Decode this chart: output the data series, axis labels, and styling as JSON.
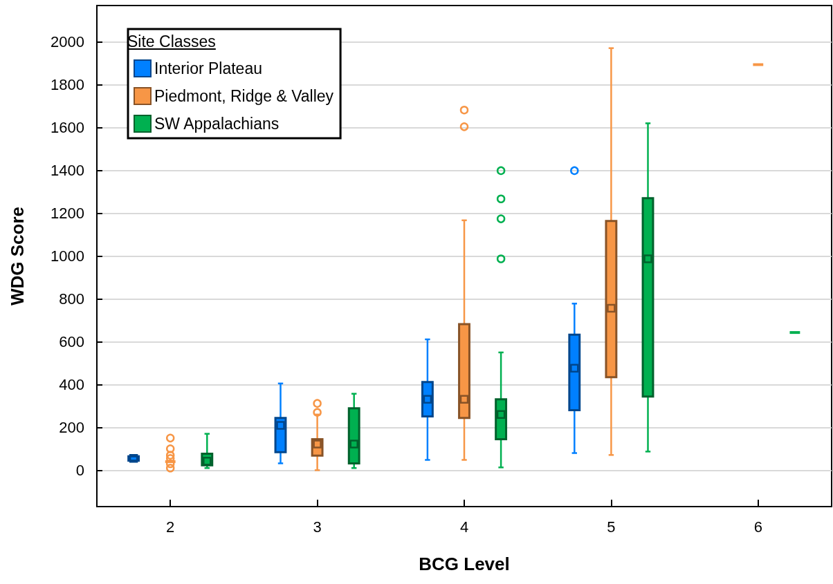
{
  "chart_data": {
    "type": "box",
    "xlabel": "BCG Level",
    "ylabel": "WDG Score",
    "legend_title": "Site Classes",
    "legend": "top left",
    "grid": "y",
    "categories": [
      "2",
      "3",
      "4",
      "5",
      "6"
    ],
    "ylim": [
      -170,
      2170
    ],
    "yticks": [
      0,
      200,
      400,
      600,
      800,
      1000,
      1200,
      1400,
      1600,
      1800,
      2000
    ],
    "series": [
      {
        "name": "Interior Plateau",
        "color": "#0080ff",
        "boxes": [
          {
            "low": 45,
            "q1": 45,
            "median": 55,
            "q3": 65,
            "high": 65
          },
          {
            "low": 32,
            "q1": 84,
            "median": 209,
            "q3": 244,
            "high": 405
          },
          {
            "low": 48,
            "q1": 251,
            "median": 331,
            "q3": 412,
            "high": 611
          },
          {
            "low": 80,
            "q1": 280,
            "median": 476,
            "q3": 633,
            "high": 778,
            "outliers": [
              1399
            ]
          },
          null
        ]
      },
      {
        "name": "Piedmont, Ridge & Valley",
        "color": "#f79646",
        "boxes": [
          {
            "low": 40,
            "q1": 40,
            "median": 40,
            "q3": 40,
            "high": 40,
            "outliers": [
              70,
              55,
              30,
              10,
              150,
              100
            ]
          },
          {
            "low": 0,
            "q1": 68,
            "median": 122,
            "q3": 145,
            "high": 260,
            "outliers": [
              312,
              270
            ]
          },
          {
            "low": 48,
            "q1": 244,
            "median": 331,
            "q3": 682,
            "high": 1167,
            "outliers": [
              1682,
              1604
            ]
          },
          {
            "low": 71,
            "q1": 434,
            "median": 756,
            "q3": 1164,
            "high": 1971
          },
          {
            "low": 1894,
            "q1": 1894,
            "median": 1894,
            "q3": 1894,
            "high": 1894
          }
        ]
      },
      {
        "name": "SW Appalachians",
        "color": "#00b050",
        "boxes": [
          {
            "low": 10,
            "q1": 23,
            "median": 42,
            "q3": 77,
            "high": 170
          },
          {
            "low": 10,
            "q1": 32,
            "median": 122,
            "q3": 289,
            "high": 357
          },
          {
            "low": 13,
            "q1": 145,
            "median": 260,
            "q3": 331,
            "high": 550,
            "outliers": [
              1399,
              1267,
              1174,
              987
            ]
          },
          {
            "low": 87,
            "q1": 344,
            "median": 987,
            "q3": 1270,
            "high": 1620
          },
          {
            "low": 643,
            "q1": 643,
            "median": 643,
            "q3": 643,
            "high": 643
          }
        ]
      }
    ]
  }
}
